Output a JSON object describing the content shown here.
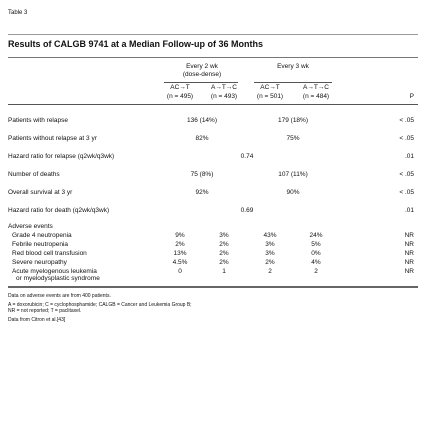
{
  "table": {
    "label": "Table 3",
    "title": "Results of CALGB 9741 at a Median Follow-up of 36 Months",
    "headers": {
      "groups": [
        [
          "Every 2 wk",
          "(dose-dense)"
        ],
        [
          "Every 3 wk"
        ]
      ],
      "arms": [
        "AC→T",
        "A→T→C",
        "AC→T",
        "A→T→C"
      ],
      "ns": [
        "(n = 495)",
        "(n = 493)",
        "(n = 501)",
        "(n = 484)"
      ],
      "p": "P"
    },
    "rows": [
      {
        "label": "Patients with relapse",
        "cells": [
          "136 (14%)",
          "179 (18%)"
        ],
        "p": "< .05"
      },
      {
        "label": "Patients without relapse at 3 yr",
        "cells": [
          "82%",
          "75%"
        ],
        "p": "< .05"
      },
      {
        "label": "Hazard ratio for relapse (q2wk/q3wk)",
        "cells": [
          "0.74"
        ],
        "p": ".01"
      },
      {
        "label": "Number of deaths",
        "cells": [
          "75 (8%)",
          "107 (11%)"
        ],
        "p": "< .05"
      },
      {
        "label": "Overall survival at 3 yr",
        "cells": [
          "92%",
          "90%"
        ],
        "p": "< .05"
      },
      {
        "label": "Hazard ratio for death (q2wk/q3wk)",
        "cells": [
          "0.69"
        ],
        "p": ".01"
      }
    ],
    "adverse": {
      "label": "Adverse events",
      "rows": [
        {
          "label": [
            "Grade 4 neutropenia"
          ],
          "cells": [
            "9%",
            "3%",
            "43%",
            "24%"
          ],
          "p": "NR"
        },
        {
          "label": [
            "Febrile neutropenia"
          ],
          "cells": [
            "2%",
            "2%",
            "3%",
            "5%"
          ],
          "p": "NR"
        },
        {
          "label": [
            "Red blood cell transfusion"
          ],
          "cells": [
            "13%",
            "2%",
            "3%",
            "0%"
          ],
          "p": "NR"
        },
        {
          "label": [
            "Severe neuropathy"
          ],
          "cells": [
            "4.5%",
            "2%",
            "2%",
            "4%"
          ],
          "p": "NR"
        },
        {
          "label": [
            "Acute myelogenous leukemia",
            "or myelodysplastic syndrome"
          ],
          "cells": [
            "0",
            "1",
            "2",
            "2"
          ],
          "p": "NR"
        }
      ]
    },
    "footnotes": [
      "Data on adverse events are from 400 patients.",
      "A = doxorubicin; C = cyclophosphamide; CALGB = Cancer and Leukemia Group B;",
      "NR = not reported; T = paclitaxel.",
      "Data from Citron et al.[43]"
    ]
  }
}
